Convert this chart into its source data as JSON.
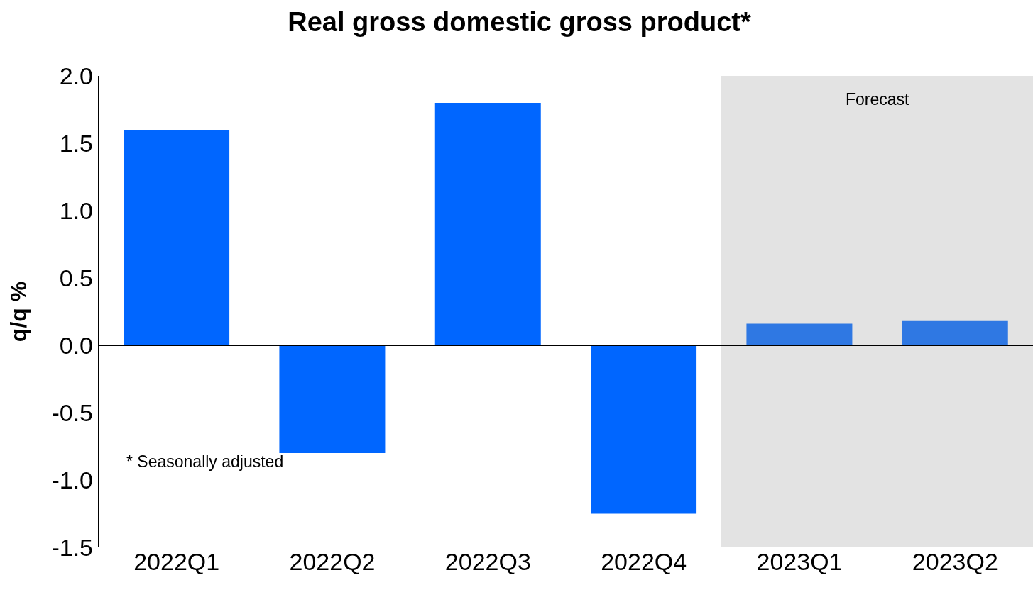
{
  "chart_data": {
    "type": "bar",
    "title": "Real gross domestic gross product*",
    "ylabel": "q/q %",
    "categories": [
      "2022Q1",
      "2022Q2",
      "2022Q3",
      "2022Q4",
      "2023Q1",
      "2023Q2"
    ],
    "values": [
      1.6,
      -0.8,
      1.8,
      -1.25,
      0.16,
      0.18
    ],
    "colors": [
      "#0066ff",
      "#0066ff",
      "#0066ff",
      "#0066ff",
      "#2f78e3",
      "#2f78e3"
    ],
    "ylim": [
      -1.5,
      2.0
    ],
    "yticks": [
      {
        "value": -1.5,
        "label": "-1.5"
      },
      {
        "value": -1,
        "label": "-1.0"
      },
      {
        "value": -0.5,
        "label": "-0.5"
      },
      {
        "value": 0,
        "label": "0.0"
      },
      {
        "value": 0.5,
        "label": "0.5"
      },
      {
        "value": 1,
        "label": "1.0"
      },
      {
        "value": 1.5,
        "label": "1.5"
      },
      {
        "value": 2,
        "label": "2.0"
      }
    ],
    "bands": [
      {
        "axis": "x",
        "from": "2023Q1",
        "to": "2023Q2",
        "label": "Forecast",
        "color": "#e3e3e3"
      }
    ],
    "annotations": [
      "* Seasonally adjusted"
    ],
    "ref_lines": [
      {
        "axis": "y",
        "value": 0,
        "color": "#000000"
      }
    ],
    "legend": false
  }
}
